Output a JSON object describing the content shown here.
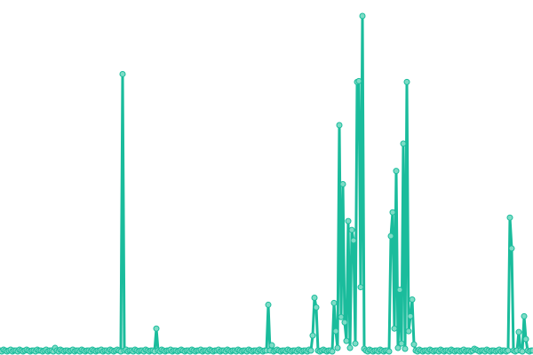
{
  "chart_data": {
    "type": "line",
    "title": "",
    "xlabel": "",
    "ylabel": "",
    "grid": false,
    "axes_visible": false,
    "legend": "none",
    "markers": true,
    "colors": {
      "line": "#1abc9c",
      "marker_fill": "#7ddcc6",
      "marker_stroke": "#1abc9c"
    },
    "x_range": [
      0,
      300
    ],
    "y_range": [
      0,
      385
    ],
    "series": [
      {
        "values": [
          2,
          1,
          3,
          2,
          1,
          2,
          3,
          1,
          2,
          2,
          1,
          3,
          2,
          1,
          2,
          3,
          2,
          1,
          2,
          2,
          1,
          3,
          2,
          2,
          1,
          2,
          3,
          1,
          2,
          2,
          1,
          5,
          2,
          1,
          3,
          2,
          1,
          2,
          2,
          1,
          2,
          3,
          1,
          2,
          2,
          1,
          3,
          2,
          1,
          2,
          2,
          1,
          3,
          2,
          1,
          2,
          2,
          3,
          1,
          2,
          2,
          1,
          3,
          2,
          1,
          2,
          3,
          2,
          1,
          316,
          2,
          3,
          1,
          2,
          2,
          1,
          3,
          2,
          1,
          2,
          2,
          1,
          3,
          2,
          1,
          2,
          2,
          1,
          27,
          2,
          1,
          3,
          2,
          1,
          2,
          2,
          3,
          1,
          2,
          2,
          1,
          2,
          3,
          2,
          1,
          2,
          2,
          1,
          3,
          2,
          1,
          2,
          2,
          3,
          1,
          2,
          2,
          1,
          3,
          2,
          1,
          2,
          2,
          3,
          1,
          2,
          2,
          1,
          3,
          2,
          1,
          2,
          2,
          1,
          3,
          2,
          1,
          2,
          2,
          1,
          3,
          2,
          1,
          2,
          2,
          1,
          3,
          2,
          1,
          2,
          2,
          54,
          2,
          8,
          1,
          2,
          3,
          2,
          1,
          2,
          2,
          1,
          3,
          2,
          1,
          2,
          2,
          1,
          3,
          2,
          1,
          2,
          2,
          1,
          3,
          2,
          19,
          62,
          51,
          2,
          1,
          2,
          3,
          2,
          1,
          2,
          2,
          1,
          56,
          24,
          5,
          258,
          40,
          191,
          34,
          13,
          149,
          5,
          139,
          127,
          10,
          307,
          308,
          74,
          382,
          4,
          2,
          1,
          3,
          2,
          1,
          2,
          2,
          1,
          3,
          2,
          1,
          2,
          2,
          1,
          132,
          159,
          27,
          206,
          5,
          71,
          10,
          237,
          4,
          307,
          24,
          41,
          60,
          9,
          2,
          1,
          3,
          2,
          1,
          2,
          2,
          1,
          3,
          2,
          1,
          2,
          2,
          1,
          3,
          2,
          1,
          2,
          2,
          1,
          3,
          2,
          1,
          2,
          2,
          1,
          2,
          3,
          1,
          2,
          2,
          1,
          2,
          4,
          3,
          2,
          1,
          2,
          2,
          1,
          3,
          2,
          1,
          2,
          2,
          1,
          2,
          3,
          1,
          2,
          2,
          1,
          2,
          153,
          118,
          2,
          1,
          2,
          23,
          2,
          1,
          41,
          15,
          2,
          1,
          2,
          2
        ]
      }
    ]
  }
}
